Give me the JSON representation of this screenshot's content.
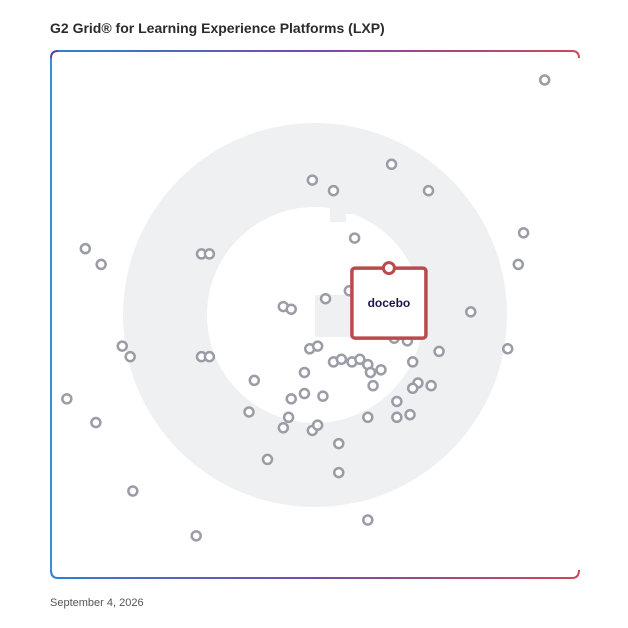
{
  "title": "G2 Grid® for Learning Experience Platforms (LXP)",
  "date": "September 4, 2026",
  "colors": {
    "border_top_left": "#5b3fa6",
    "border_top_right": "#e8573a",
    "border_bottom_left": "#2f9fd8",
    "border_bottom_right": "#8a3a9e",
    "point": "#9a9ca6",
    "highlight": "#b94a4e",
    "watermark": "#eef0f2"
  },
  "chart_data": {
    "type": "scatter",
    "xlim": [
      0,
      100
    ],
    "ylim": [
      0,
      100
    ],
    "grid": "quadrants",
    "highlight": {
      "label": "docebo",
      "x": 64,
      "y": 59
    },
    "points": [
      {
        "x": 93.5,
        "y": 94.5
      },
      {
        "x": 64.5,
        "y": 78.5
      },
      {
        "x": 49.5,
        "y": 75.5
      },
      {
        "x": 53.5,
        "y": 73.5
      },
      {
        "x": 71.5,
        "y": 73.5
      },
      {
        "x": 57.5,
        "y": 64.5
      },
      {
        "x": 89.5,
        "y": 65.5
      },
      {
        "x": 88.5,
        "y": 59.5
      },
      {
        "x": 6.5,
        "y": 62.5
      },
      {
        "x": 9.5,
        "y": 59.5
      },
      {
        "x": 28.5,
        "y": 61.5
      },
      {
        "x": 30.0,
        "y": 61.5
      },
      {
        "x": 52.0,
        "y": 53.0
      },
      {
        "x": 56.5,
        "y": 54.5
      },
      {
        "x": 44.0,
        "y": 51.5
      },
      {
        "x": 45.5,
        "y": 51.0
      },
      {
        "x": 79.5,
        "y": 50.5
      },
      {
        "x": 86.5,
        "y": 43.5
      },
      {
        "x": 73.5,
        "y": 43.0
      },
      {
        "x": 65.0,
        "y": 45.5
      },
      {
        "x": 67.5,
        "y": 45.0
      },
      {
        "x": 49.0,
        "y": 43.5
      },
      {
        "x": 50.5,
        "y": 44.0
      },
      {
        "x": 13.5,
        "y": 44.0
      },
      {
        "x": 15.0,
        "y": 42.0
      },
      {
        "x": 28.5,
        "y": 42.0
      },
      {
        "x": 30.0,
        "y": 42.0
      },
      {
        "x": 53.5,
        "y": 41.0
      },
      {
        "x": 55.0,
        "y": 41.5
      },
      {
        "x": 57.0,
        "y": 41.0
      },
      {
        "x": 58.5,
        "y": 41.5
      },
      {
        "x": 60.0,
        "y": 40.5
      },
      {
        "x": 62.5,
        "y": 39.5
      },
      {
        "x": 60.5,
        "y": 39.0
      },
      {
        "x": 68.5,
        "y": 41.0
      },
      {
        "x": 48.0,
        "y": 39.0
      },
      {
        "x": 38.5,
        "y": 37.5
      },
      {
        "x": 61.0,
        "y": 36.5
      },
      {
        "x": 69.5,
        "y": 37.0
      },
      {
        "x": 72.0,
        "y": 36.5
      },
      {
        "x": 68.5,
        "y": 36.0
      },
      {
        "x": 3.0,
        "y": 34.0
      },
      {
        "x": 48.0,
        "y": 35.0
      },
      {
        "x": 51.5,
        "y": 34.5
      },
      {
        "x": 45.5,
        "y": 34.0
      },
      {
        "x": 65.5,
        "y": 33.5
      },
      {
        "x": 37.5,
        "y": 31.5
      },
      {
        "x": 45.0,
        "y": 30.5
      },
      {
        "x": 68.0,
        "y": 31.0
      },
      {
        "x": 60.0,
        "y": 30.5
      },
      {
        "x": 65.5,
        "y": 30.5
      },
      {
        "x": 8.5,
        "y": 29.5
      },
      {
        "x": 44.0,
        "y": 28.5
      },
      {
        "x": 49.5,
        "y": 28.0
      },
      {
        "x": 50.5,
        "y": 29.0
      },
      {
        "x": 54.5,
        "y": 25.5
      },
      {
        "x": 41.0,
        "y": 22.5
      },
      {
        "x": 54.5,
        "y": 20.0
      },
      {
        "x": 15.5,
        "y": 16.5
      },
      {
        "x": 60.0,
        "y": 11.0
      },
      {
        "x": 27.5,
        "y": 8.0
      }
    ]
  }
}
